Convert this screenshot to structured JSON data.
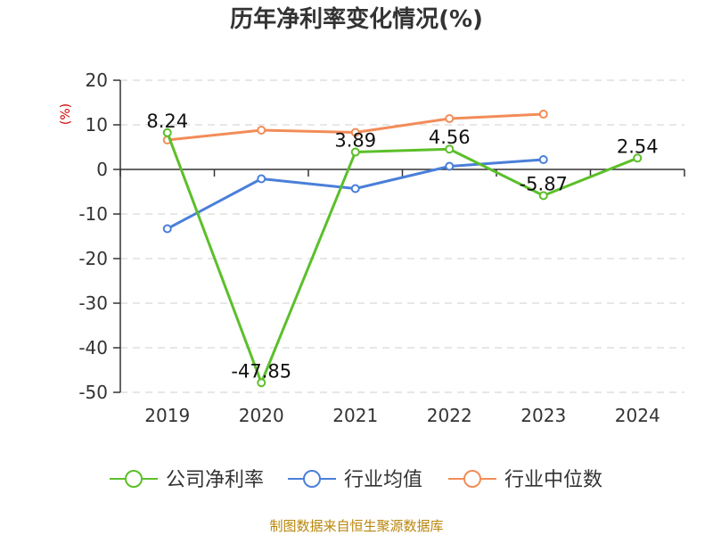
{
  "chart_data": {
    "type": "line",
    "title": "历年净利率变化情况(%)",
    "xlabel": "",
    "ylabel": "(%)",
    "categories": [
      "2019",
      "2020",
      "2021",
      "2022",
      "2023",
      "2024"
    ],
    "ylim": [
      -50,
      20
    ],
    "yticks": [
      "20",
      "10",
      "0",
      "-10",
      "-20",
      "-30",
      "-40",
      "-50"
    ],
    "grid": true,
    "legend_position": "bottom",
    "series": [
      {
        "name": "公司净利率",
        "color": "#5cbf2a",
        "values": [
          8.24,
          -47.85,
          3.89,
          4.56,
          -5.87,
          2.54
        ],
        "labels": [
          "8.24",
          "-47.85",
          "3.89",
          "4.56",
          "-5.87",
          "2.54"
        ]
      },
      {
        "name": "行业均值",
        "color": "#4a7fd9",
        "values": [
          -13.3,
          -2.1,
          -4.3,
          0.7,
          2.2,
          null
        ]
      },
      {
        "name": "行业中位数",
        "color": "#f28c58",
        "values": [
          6.6,
          8.8,
          8.3,
          11.4,
          12.4,
          null
        ]
      }
    ]
  },
  "source_text": "制图数据来自恒生聚源数据库"
}
